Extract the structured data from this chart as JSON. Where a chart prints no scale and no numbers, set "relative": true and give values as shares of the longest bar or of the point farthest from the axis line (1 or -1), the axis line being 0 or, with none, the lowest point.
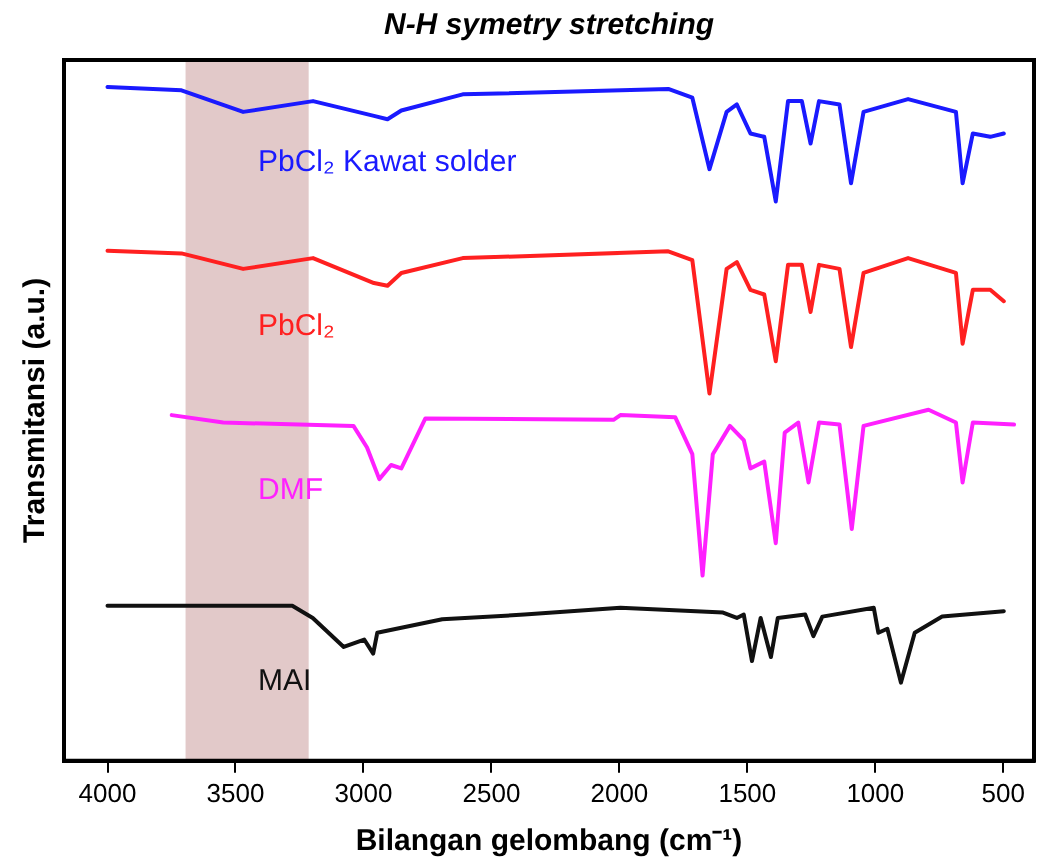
{
  "chart_data": {
    "type": "line",
    "title": "N-H symetry stretching",
    "xlabel": "Bilangan gelombang (cm⁻¹)",
    "ylabel": "Transmitansi (a.u.)",
    "relative": true,
    "xlim": [
      4170,
      380
    ],
    "xticks": [
      4000,
      3500,
      3000,
      2500,
      2000,
      1500,
      1000,
      500
    ],
    "tick_labels": "x",
    "grid": false,
    "legend": false,
    "marker": "none",
    "line_style": "solid",
    "bands": [
      {
        "axis": "x",
        "from": 3695,
        "to": 3214,
        "color": "#e2c9c9"
      }
    ],
    "series": [
      {
        "name": "PbCl₂ Kawat solder",
        "color": "#1a1aff",
        "x": [
          4000,
          3711,
          3470,
          3197,
          2959,
          2906,
          2852,
          2612,
          1809,
          1715,
          1648,
          1581,
          1541,
          1488,
          1434,
          1389,
          1341,
          1287,
          1253,
          1220,
          1140,
          1095,
          1046,
          872,
          685,
          659,
          619,
          551,
          498
        ],
        "values": [
          1.0,
          0.995,
          0.963,
          0.979,
          0.957,
          0.952,
          0.965,
          0.989,
          0.997,
          0.984,
          0.878,
          0.963,
          0.974,
          0.931,
          0.926,
          0.83,
          0.979,
          0.979,
          0.916,
          0.979,
          0.974,
          0.857,
          0.963,
          0.982,
          0.963,
          0.857,
          0.931,
          0.926,
          0.931
        ]
      },
      {
        "name": "PbCl₂",
        "color": "#ff2020",
        "x": [
          4000,
          3711,
          3470,
          3197,
          2959,
          2906,
          2852,
          2612,
          1809,
          1715,
          1648,
          1581,
          1541,
          1488,
          1434,
          1389,
          1341,
          1287,
          1253,
          1220,
          1140,
          1095,
          1046,
          872,
          685,
          659,
          619,
          551,
          498
        ],
        "values": [
          0.757,
          0.753,
          0.73,
          0.746,
          0.709,
          0.705,
          0.724,
          0.746,
          0.756,
          0.743,
          0.545,
          0.73,
          0.74,
          0.699,
          0.692,
          0.593,
          0.736,
          0.736,
          0.666,
          0.736,
          0.73,
          0.614,
          0.724,
          0.746,
          0.724,
          0.619,
          0.699,
          0.699,
          0.682
        ]
      },
      {
        "name": "DMF",
        "color": "#ff20ff",
        "x": [
          3749,
          3548,
          3039,
          2986,
          2938,
          2892,
          2852,
          2758,
          2023,
          1996,
          1782,
          1715,
          1675,
          1635,
          1568,
          1514,
          1488,
          1434,
          1389,
          1354,
          1301,
          1261,
          1220,
          1140,
          1092,
          1046,
          792,
          685,
          659,
          619,
          458
        ],
        "values": [
          0.513,
          0.502,
          0.497,
          0.465,
          0.418,
          0.439,
          0.434,
          0.508,
          0.506,
          0.513,
          0.51,
          0.455,
          0.275,
          0.455,
          0.497,
          0.476,
          0.434,
          0.444,
          0.323,
          0.487,
          0.502,
          0.413,
          0.502,
          0.499,
          0.344,
          0.497,
          0.521,
          0.502,
          0.413,
          0.502,
          0.499
        ]
      },
      {
        "name": "MAI",
        "color": "#111111",
        "x": [
          4000,
          3278,
          3198,
          3077,
          2997,
          2962,
          2946,
          2692,
          2371,
          1996,
          1595,
          1541,
          1514,
          1482,
          1448,
          1408,
          1381,
          1274,
          1242,
          1207,
          1006,
          988,
          953,
          900,
          846,
          739,
          498
        ],
        "values": [
          0.23,
          0.23,
          0.212,
          0.169,
          0.18,
          0.159,
          0.19,
          0.21,
          0.217,
          0.227,
          0.22,
          0.212,
          0.217,
          0.148,
          0.212,
          0.154,
          0.212,
          0.217,
          0.185,
          0.214,
          0.227,
          0.19,
          0.196,
          0.116,
          0.19,
          0.214,
          0.222
        ]
      }
    ]
  }
}
